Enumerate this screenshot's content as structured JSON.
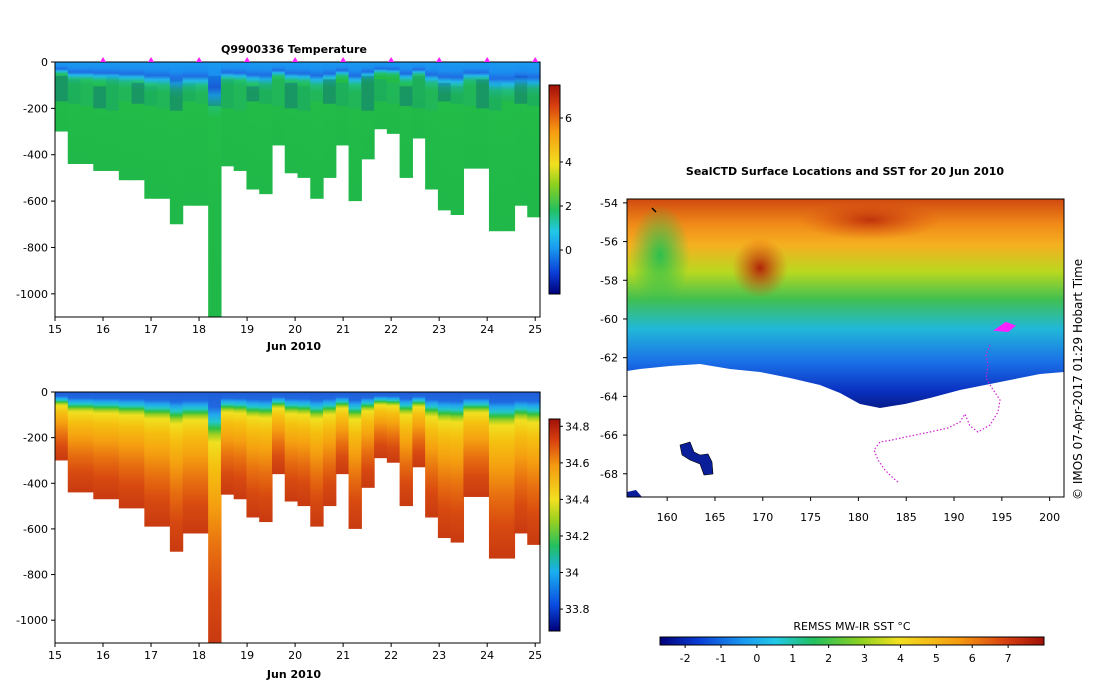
{
  "chart_data": [
    {
      "type": "heatmap",
      "title": "Q9900336  Temperature",
      "xlabel": "Jun 2010",
      "ylabel": "",
      "x_range": [
        15,
        25.1
      ],
      "y_range": [
        -1100,
        0
      ],
      "x_ticks": [
        "15",
        "16",
        "17",
        "18",
        "19",
        "20",
        "21",
        "22",
        "23",
        "24",
        "25"
      ],
      "y_ticks": [
        "0",
        "-200",
        "-400",
        "-600",
        "-800",
        "-1000"
      ],
      "colorbar": {
        "range": [
          -2,
          7.5
        ],
        "ticks": [
          "6",
          "4",
          "2",
          "0"
        ],
        "tick_values": [
          6,
          4,
          2,
          0
        ]
      },
      "profile_bottom_depths": [
        300,
        440,
        440,
        470,
        470,
        510,
        510,
        590,
        590,
        700,
        620,
        620,
        1100,
        450,
        470,
        550,
        570,
        360,
        480,
        500,
        590,
        500,
        360,
        600,
        420,
        290,
        310,
        500,
        330,
        550,
        640,
        660,
        460,
        460,
        730,
        730,
        620,
        670
      ],
      "marker_days": [
        16,
        17,
        18,
        19,
        20,
        21,
        22,
        23,
        24,
        25
      ]
    },
    {
      "type": "heatmap",
      "title": "",
      "xlabel": "Jun 2010",
      "ylabel": "",
      "x_range": [
        15,
        25.1
      ],
      "y_range": [
        -1100,
        0
      ],
      "x_ticks": [
        "15",
        "16",
        "17",
        "18",
        "19",
        "20",
        "21",
        "22",
        "23",
        "24",
        "25"
      ],
      "y_ticks": [
        "0",
        "-200",
        "-400",
        "-600",
        "-800",
        "-1000"
      ],
      "colorbar": {
        "range": [
          33.68,
          34.84
        ],
        "ticks": [
          "34.8",
          "34.6",
          "34.4",
          "34.2",
          "34",
          "33.8"
        ],
        "tick_values": [
          34.8,
          34.6,
          34.4,
          34.2,
          34.0,
          33.8
        ]
      }
    },
    {
      "type": "heatmap",
      "title": "SealCTD Surface Locations and SST for 20 Jun 2010",
      "xlabel": "",
      "ylabel": "",
      "x_range": [
        155.8,
        201.5
      ],
      "y_range": [
        -69.2,
        -53.8
      ],
      "x_ticks": [
        "160",
        "165",
        "170",
        "175",
        "180",
        "185",
        "190",
        "195",
        "200"
      ],
      "y_ticks": [
        "-54",
        "-56",
        "-58",
        "-60",
        "-62",
        "-64",
        "-66",
        "-68"
      ],
      "colorbar_label": "REMSS MW-IR SST °C",
      "colorbar": {
        "range": [
          -2.7,
          8
        ],
        "ticks": [
          "-2",
          "-1",
          "0",
          "1",
          "2",
          "3",
          "4",
          "5",
          "6",
          "7"
        ]
      },
      "side_note": "© IMOS 07-Apr-2017 01:29 Hobart Time"
    }
  ]
}
